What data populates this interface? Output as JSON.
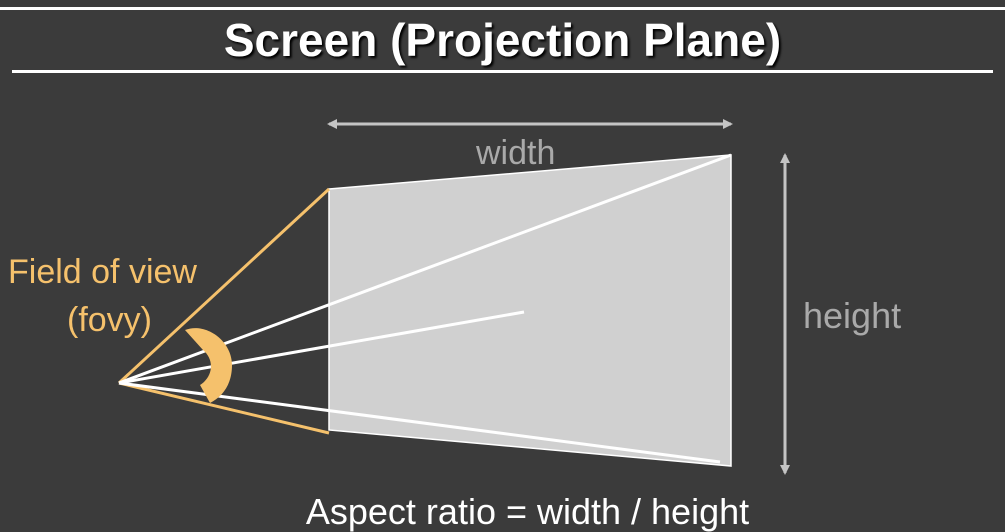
{
  "title": "Screen (Projection Plane)",
  "labels": {
    "width": "width",
    "height": "height",
    "fov_line1": "Field of view",
    "fov_line2": "(fovy)",
    "aspect_ratio": "Aspect ratio = width / height"
  },
  "colors": {
    "background": "#3b3b3b",
    "text_primary": "#ffffff",
    "text_muted": "#a9a9a9",
    "accent_fov": "#f5c16c",
    "screen_fill": "#d0d0d0"
  }
}
